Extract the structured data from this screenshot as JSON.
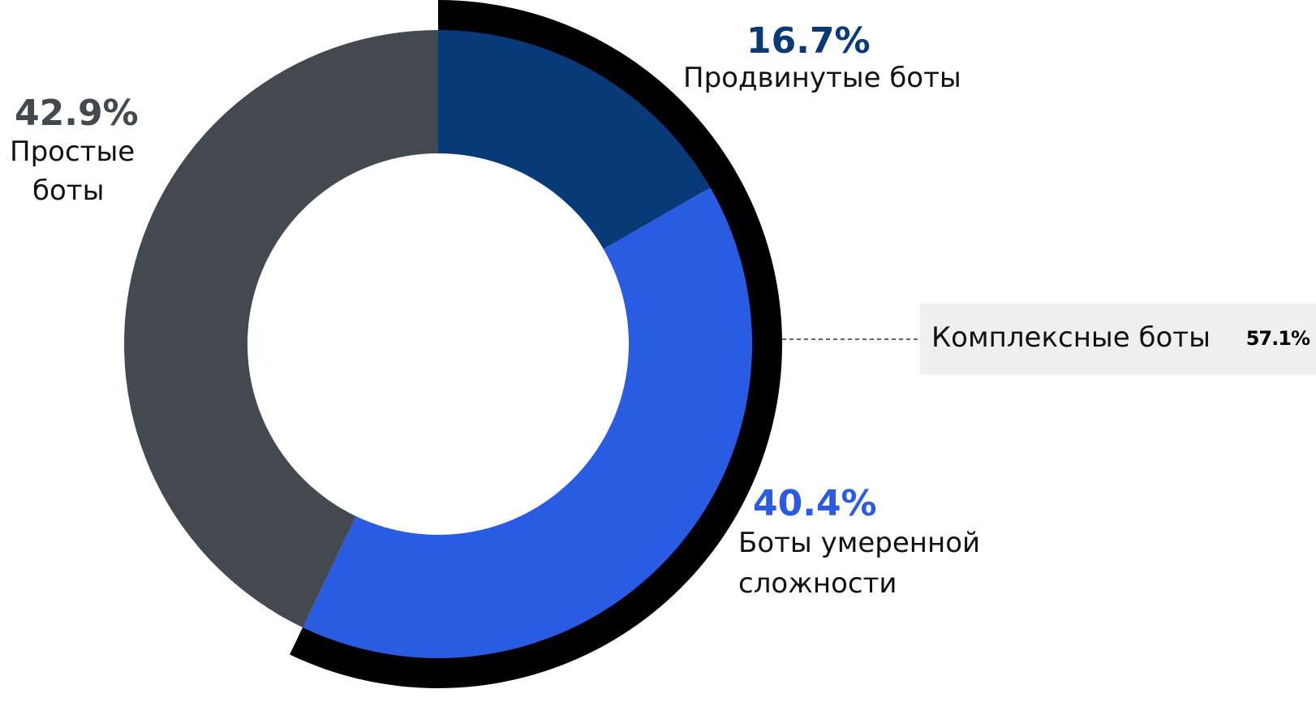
{
  "chart_data": {
    "type": "pie",
    "slices": [
      {
        "label": "Продвинутые боты",
        "value": 16.7,
        "value_label": "16.7%",
        "color": "#093a78"
      },
      {
        "label": "Боты умеренной сложности",
        "value": 40.4,
        "value_label": "40.4%",
        "color": "#2a5be3"
      },
      {
        "label": "Простые боты",
        "value": 42.9,
        "value_label": "42.9%",
        "color": "#44484f"
      }
    ],
    "group_highlight": {
      "label": "Комплексные боты",
      "value": 57.1,
      "value_label": "57.1%",
      "color": "#000000"
    }
  },
  "labels": {
    "advanced": {
      "pct": "16.7%",
      "name": "Продвинутые боты"
    },
    "moderate": {
      "pct": "40.4%",
      "name_line1": "Боты умеренной",
      "name_line2": "сложности"
    },
    "simple": {
      "pct": "42.9%",
      "name_line1": "Простые",
      "name_line2": "боты"
    },
    "complex": {
      "name": "Комплексные боты",
      "pct": "57.1%"
    }
  }
}
